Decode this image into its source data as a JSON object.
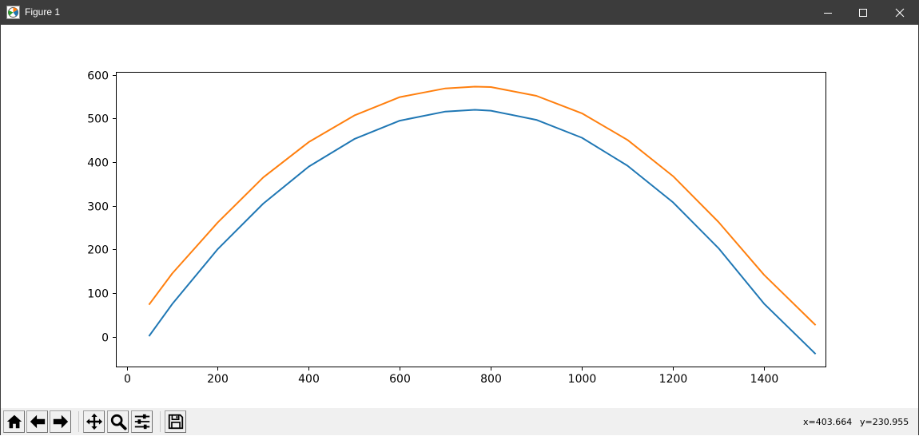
{
  "window": {
    "title": "Figure 1",
    "icon": "matplotlib-icon",
    "controls": [
      "minimize-icon",
      "maximize-icon",
      "close-icon"
    ]
  },
  "toolbar": {
    "buttons": [
      {
        "name": "home-button",
        "icon": "home-icon"
      },
      {
        "name": "back-button",
        "icon": "arrow-left-icon"
      },
      {
        "name": "forward-button",
        "icon": "arrow-right-icon"
      },
      {
        "name": "pan-button",
        "icon": "move-icon"
      },
      {
        "name": "zoom-button",
        "icon": "magnifier-icon"
      },
      {
        "name": "configure-subplots-button",
        "icon": "sliders-icon"
      },
      {
        "name": "save-button",
        "icon": "floppy-disk-icon"
      }
    ]
  },
  "status": {
    "x_readout": "x=403.664",
    "y_readout": "y=230.955"
  },
  "chart_data": {
    "type": "line",
    "title": "",
    "xlabel": "",
    "ylabel": "",
    "xlim": [
      -22,
      1535
    ],
    "ylim": [
      -68,
      605
    ],
    "xticks": [
      0,
      200,
      400,
      600,
      800,
      1000,
      1200,
      1400
    ],
    "yticks": [
      0,
      100,
      200,
      300,
      400,
      500,
      600
    ],
    "grid": false,
    "legend": "none",
    "series": [
      {
        "color": "#1f77b4",
        "x": [
          50,
          100,
          200,
          300,
          400,
          500,
          600,
          700,
          765,
          800,
          900,
          1000,
          1100,
          1200,
          1300,
          1400,
          1512
        ],
        "y": [
          3,
          75,
          201,
          305,
          390,
          453,
          495,
          516,
          520,
          518,
          497,
          456,
          392,
          308,
          203,
          76,
          -38
        ]
      },
      {
        "color": "#ff7f0e",
        "x": [
          50,
          100,
          200,
          300,
          400,
          500,
          600,
          700,
          765,
          800,
          900,
          1000,
          1100,
          1200,
          1300,
          1400,
          1512
        ],
        "y": [
          75,
          145,
          262,
          365,
          446,
          507,
          549,
          569,
          573,
          572,
          552,
          512,
          451,
          368,
          263,
          142,
          28
        ]
      }
    ]
  }
}
